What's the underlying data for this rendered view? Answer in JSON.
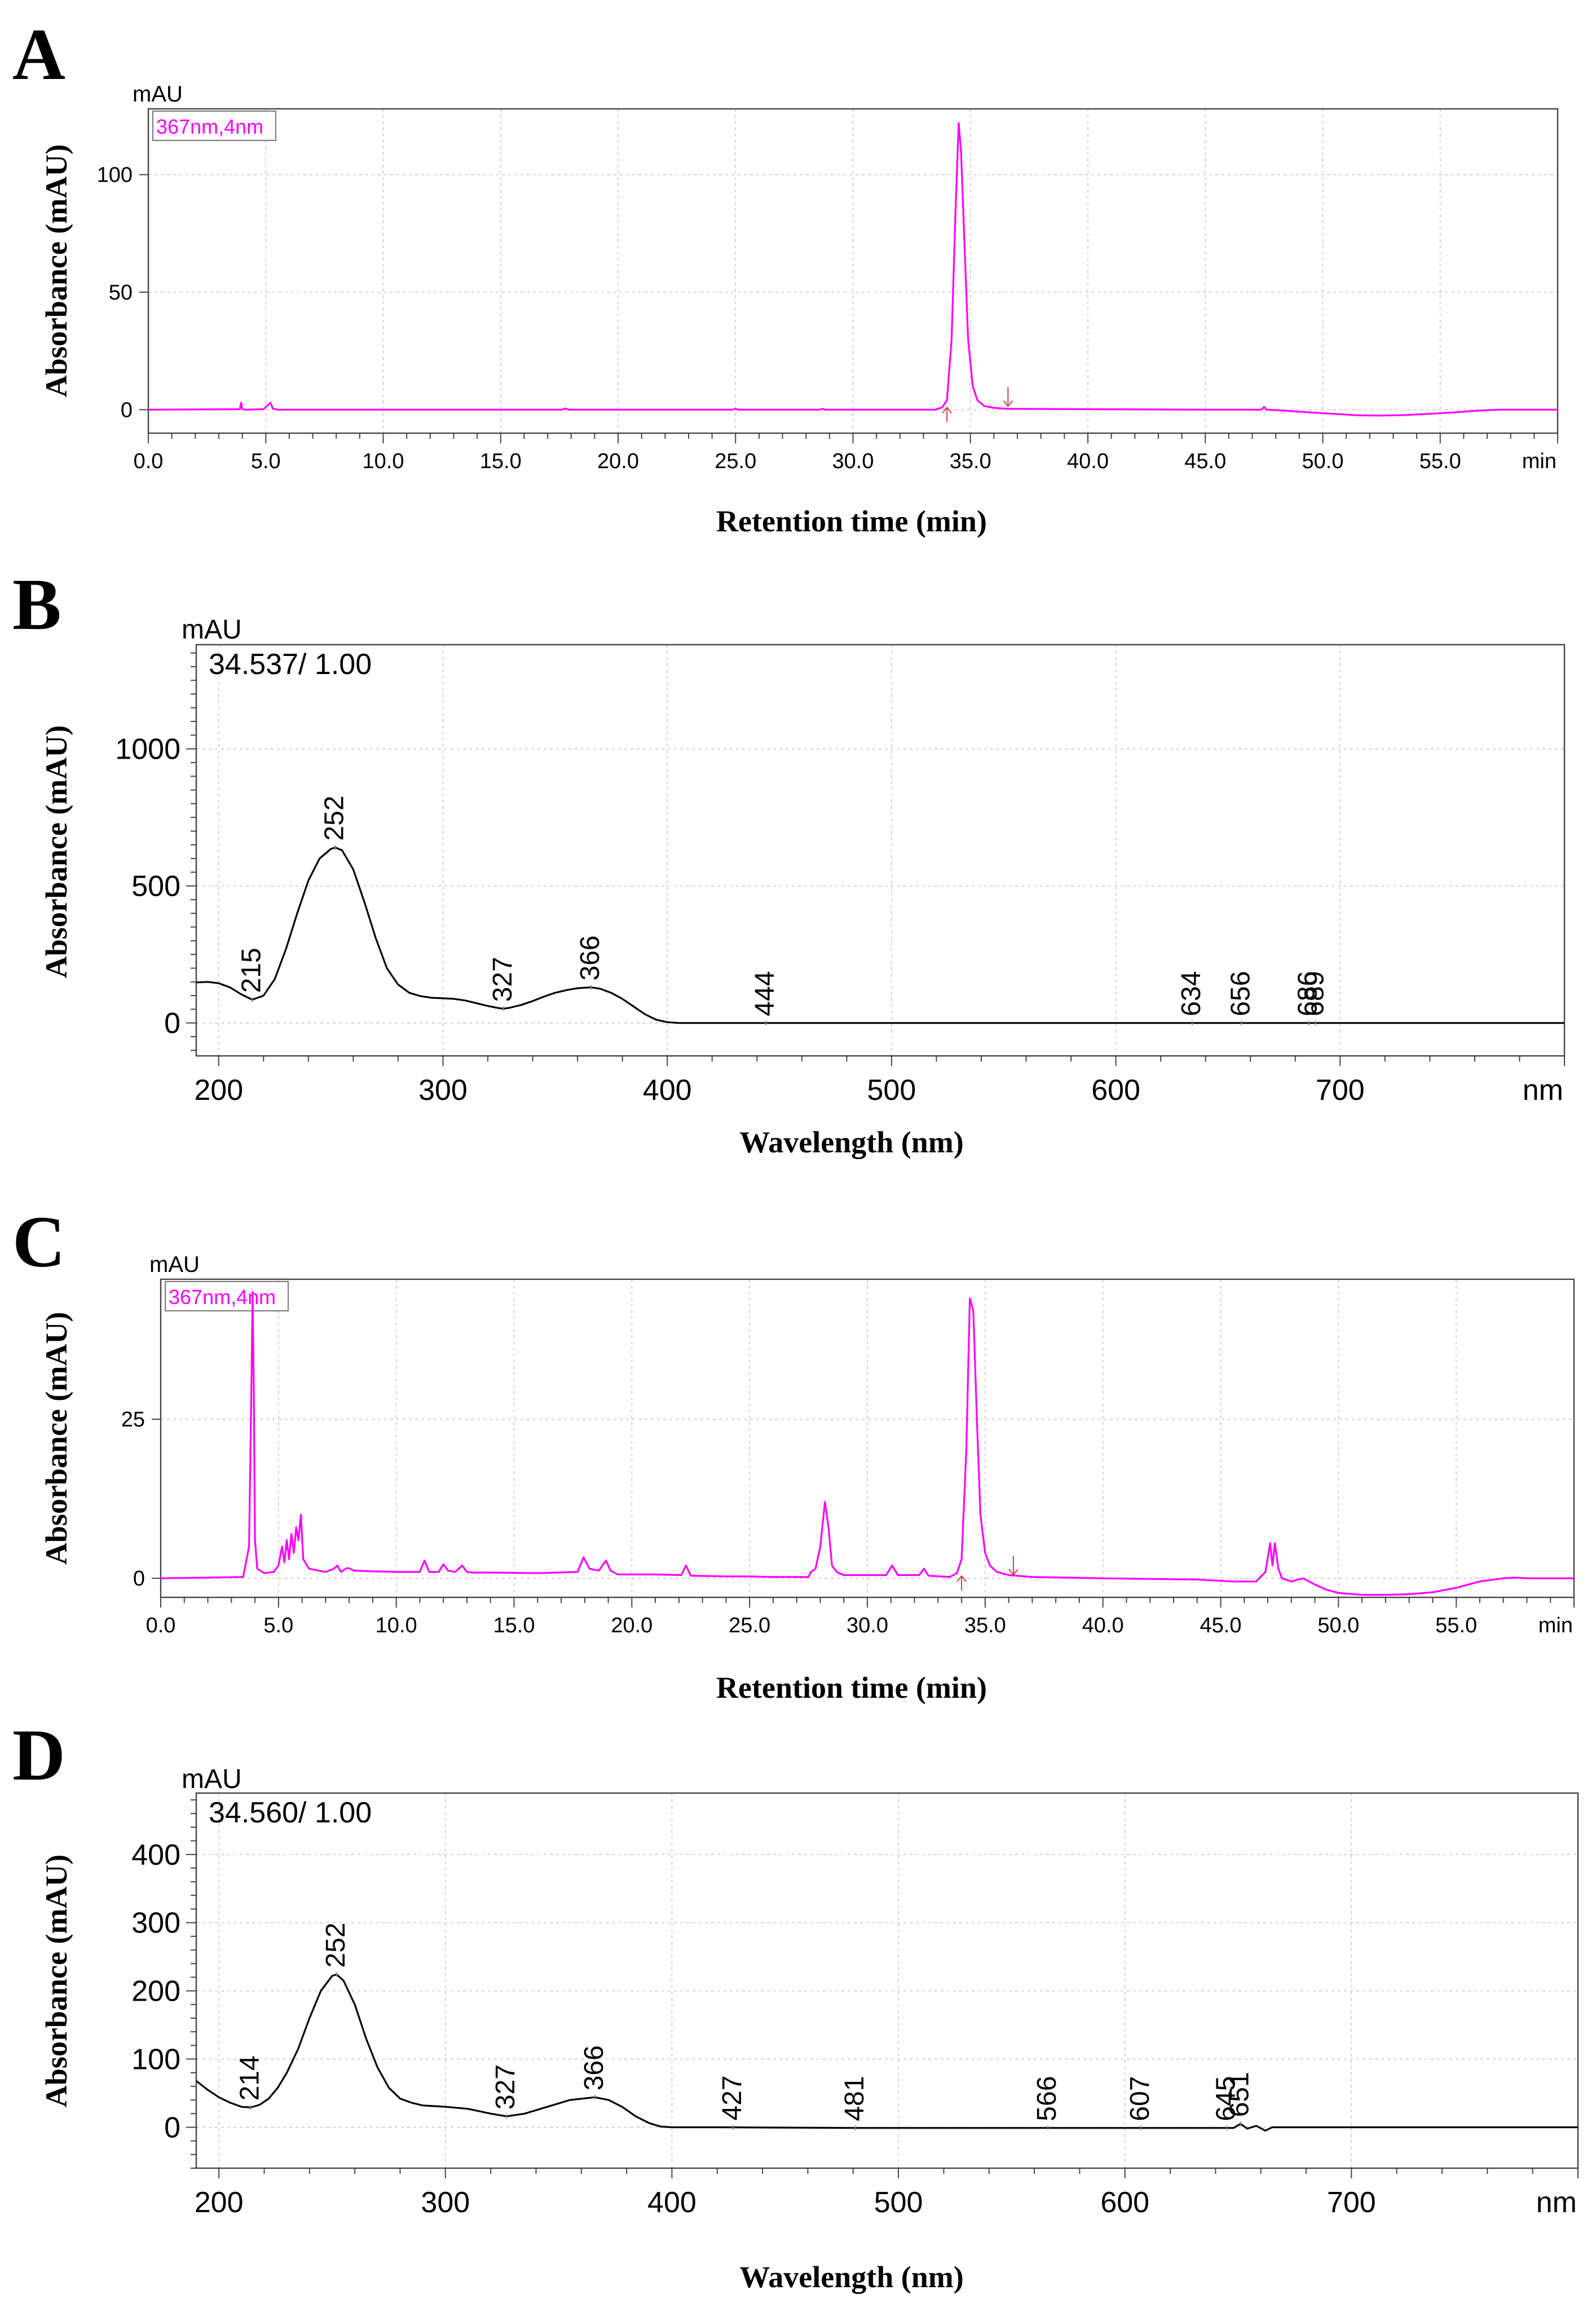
{
  "chart_data": [
    {
      "id": "A",
      "type": "line",
      "panel_label": "A",
      "xlabel": "Retention time (min)",
      "ylabel": "Absorbance (mAU)",
      "y_unit": "mAU",
      "x_unit": "min",
      "channel_label": "367nm,4nm",
      "xlim": [
        0,
        60
      ],
      "ylim": [
        -10,
        128
      ],
      "x_ticks": [
        "0.0",
        "5.0",
        "10.0",
        "15.0",
        "20.0",
        "25.0",
        "30.0",
        "35.0",
        "40.0",
        "45.0",
        "50.0",
        "55.0"
      ],
      "y_ticks": [
        "0",
        "50",
        "100"
      ],
      "grid": true,
      "line_color": "#ff00ff",
      "series": [
        {
          "x": [
            0,
            3.9,
            3.95,
            4.0,
            4.1,
            4.9,
            5.1,
            5.2,
            5.3,
            5.5,
            10,
            17.6,
            17.75,
            17.9,
            19.0,
            24.9,
            25.0,
            25.1,
            28.6,
            28.7,
            28.8,
            33.5,
            33.8,
            34.0,
            34.2,
            34.35,
            34.5,
            34.6,
            34.75,
            34.9,
            35.1,
            35.3,
            35.6,
            36.0,
            36.5,
            40,
            45,
            47.4,
            47.5,
            47.6,
            48.5,
            49.5,
            50.5,
            51.5,
            52.5,
            53.5,
            54.5,
            55.5,
            56.5,
            57.5,
            58.5,
            60
          ],
          "y": [
            0,
            0.2,
            3,
            0.3,
            0,
            0.2,
            2,
            3,
            0.5,
            0,
            0,
            0,
            0.5,
            0,
            0,
            0,
            0.5,
            0,
            0,
            0.4,
            0,
            0,
            1,
            4,
            30,
            80,
            122,
            110,
            70,
            30,
            10,
            4,
            1.5,
            0.8,
            0.4,
            0.2,
            0,
            0,
            1.2,
            0,
            -0.5,
            -1.2,
            -1.8,
            -2.4,
            -2.5,
            -2.3,
            -1.8,
            -1.2,
            -0.5,
            0,
            0,
            0
          ]
        }
      ],
      "markers_x": [
        34.0,
        36.6
      ]
    },
    {
      "id": "B",
      "type": "line",
      "panel_label": "B",
      "xlabel": "Wavelength (nm)",
      "ylabel": "Absorbance (mAU)",
      "y_unit": "mAU",
      "x_unit": "nm",
      "stamp": "34.537/ 1.00",
      "xlim": [
        190,
        800
      ],
      "ylim": [
        -120,
        1380
      ],
      "x_ticks": [
        "200",
        "300",
        "400",
        "500",
        "600",
        "700"
      ],
      "y_ticks": [
        "0",
        "500",
        "1000"
      ],
      "grid": true,
      "line_color": "#000000",
      "series": [
        {
          "x": [
            190,
            195,
            200,
            205,
            210,
            215,
            220,
            225,
            230,
            235,
            240,
            245,
            250,
            252,
            255,
            260,
            265,
            270,
            275,
            280,
            285,
            290,
            295,
            300,
            305,
            310,
            315,
            320,
            325,
            327,
            330,
            335,
            340,
            345,
            350,
            355,
            360,
            366,
            370,
            375,
            380,
            385,
            390,
            395,
            400,
            405,
            410,
            420,
            440,
            500,
            600,
            700,
            800
          ],
          "y": [
            148,
            150,
            145,
            130,
            105,
            85,
            100,
            160,
            270,
            400,
            520,
            600,
            635,
            640,
            630,
            560,
            440,
            310,
            200,
            140,
            110,
            98,
            92,
            90,
            88,
            82,
            72,
            62,
            54,
            52,
            56,
            66,
            80,
            96,
            110,
            120,
            127,
            130,
            125,
            110,
            88,
            60,
            32,
            12,
            3,
            0,
            0,
            0,
            0,
            0,
            0,
            0,
            0
          ]
        }
      ],
      "peaks": [
        "215",
        "252",
        "327",
        "366",
        "444",
        "634",
        "656",
        "686",
        "689"
      ]
    },
    {
      "id": "C",
      "type": "line",
      "panel_label": "C",
      "xlabel": "Retention time (min)",
      "ylabel": "Absorbance (mAU)",
      "y_unit": "mAU",
      "x_unit": "min",
      "channel_label": "367nm,4nm",
      "xlim": [
        0,
        60
      ],
      "ylim": [
        -3,
        47
      ],
      "x_ticks": [
        "0.0",
        "5.0",
        "10.0",
        "15.0",
        "20.0",
        "25.0",
        "30.0",
        "35.0",
        "40.0",
        "45.0",
        "50.0",
        "55.0"
      ],
      "y_ticks": [
        "0",
        "25"
      ],
      "grid": true,
      "line_color": "#ff00ff",
      "series": [
        {
          "x": [
            0,
            2.0,
            3.5,
            3.75,
            3.85,
            3.9,
            3.95,
            4.0,
            4.1,
            4.4,
            4.8,
            5.0,
            5.15,
            5.25,
            5.35,
            5.45,
            5.55,
            5.65,
            5.75,
            5.85,
            5.95,
            6.05,
            6.3,
            7.0,
            7.35,
            7.5,
            7.65,
            7.9,
            8.05,
            8.2,
            9,
            10,
            11.0,
            11.2,
            11.4,
            11.8,
            12.0,
            12.2,
            12.5,
            12.8,
            13.0,
            13.2,
            14,
            16,
            17.7,
            17.95,
            18.2,
            18.6,
            18.9,
            19.1,
            19.4,
            21,
            22.1,
            22.3,
            22.5,
            24,
            25,
            26,
            27.5,
            27.6,
            27.8,
            28.0,
            28.2,
            28.35,
            28.5,
            28.7,
            29,
            30.8,
            31.05,
            31.3,
            32.2,
            32.4,
            32.6,
            33.5,
            33.8,
            34.0,
            34.2,
            34.35,
            34.5,
            34.65,
            34.8,
            35.0,
            35.2,
            35.5,
            36.0,
            37,
            40,
            44,
            45.5,
            46.5,
            46.9,
            47.1,
            47.2,
            47.3,
            47.45,
            47.6,
            48,
            48.5,
            49.0,
            49.5,
            50,
            51,
            52,
            53,
            54,
            55,
            56,
            57,
            57.5,
            58,
            60
          ],
          "y": [
            0,
            0.1,
            0.2,
            5,
            30,
            45,
            30,
            6,
            1.5,
            0.8,
            1,
            2,
            5,
            2.5,
            6,
            3,
            7,
            4,
            8,
            6,
            10,
            3,
            1.5,
            1,
            1.5,
            2,
            1,
            1.6,
            1.5,
            1.2,
            1.1,
            1,
            1,
            2.8,
            1,
            1,
            2.2,
            1.2,
            1,
            2,
            1,
            0.9,
            0.9,
            0.8,
            1,
            3.3,
            1.5,
            1.2,
            2.8,
            1.2,
            0.6,
            0.6,
            0.5,
            2,
            0.4,
            0.3,
            0.3,
            0.2,
            0.2,
            1,
            1.5,
            5,
            12,
            8,
            2,
            1,
            0.5,
            0.5,
            2,
            0.5,
            0.5,
            1.5,
            0.4,
            0.2,
            0.8,
            3,
            20,
            44,
            42,
            25,
            10,
            4,
            2,
            1,
            0.5,
            0.2,
            0,
            -0.2,
            -0.5,
            -0.5,
            1,
            5.5,
            2,
            5.5,
            1.5,
            0,
            -0.5,
            0,
            -1,
            -1.8,
            -2.3,
            -2.6,
            -2.6,
            -2.5,
            -2.2,
            -1.5,
            -0.5,
            0,
            0.1,
            0,
            0
          ]
        }
      ],
      "markers_x": [
        34.0,
        36.2
      ]
    },
    {
      "id": "D",
      "type": "line",
      "panel_label": "D",
      "xlabel": "Wavelength (nm)",
      "ylabel": "Absorbance (mAU)",
      "y_unit": "mAU",
      "x_unit": "nm",
      "stamp": "34.560/ 1.00",
      "xlim": [
        190,
        800
      ],
      "ylim": [
        -60,
        490
      ],
      "x_ticks": [
        "200",
        "300",
        "400",
        "500",
        "600",
        "700"
      ],
      "y_ticks": [
        "0",
        "100",
        "200",
        "300",
        "400"
      ],
      "grid": true,
      "line_color": "#000000",
      "series": [
        {
          "x": [
            190,
            195,
            200,
            205,
            210,
            214,
            218,
            222,
            226,
            230,
            235,
            240,
            245,
            250,
            252,
            255,
            260,
            265,
            270,
            275,
            280,
            285,
            290,
            300,
            310,
            320,
            327,
            335,
            345,
            355,
            366,
            372,
            378,
            384,
            390,
            395,
            400,
            420,
            480,
            560,
            600,
            640,
            648,
            651,
            654,
            658,
            662,
            665,
            700,
            800
          ],
          "y": [
            68,
            55,
            44,
            36,
            30,
            29,
            33,
            42,
            58,
            80,
            115,
            160,
            200,
            222,
            224,
            215,
            180,
            130,
            88,
            58,
            42,
            36,
            32,
            30,
            27,
            20,
            16,
            20,
            30,
            40,
            44,
            40,
            30,
            16,
            6,
            1,
            0,
            0,
            -1,
            -1,
            -1,
            -1,
            -1,
            5,
            -2,
            2,
            -5,
            0,
            0,
            0
          ]
        }
      ],
      "peaks": [
        "214",
        "252",
        "327",
        "366",
        "427",
        "481",
        "566",
        "607",
        "645",
        "651"
      ]
    }
  ]
}
